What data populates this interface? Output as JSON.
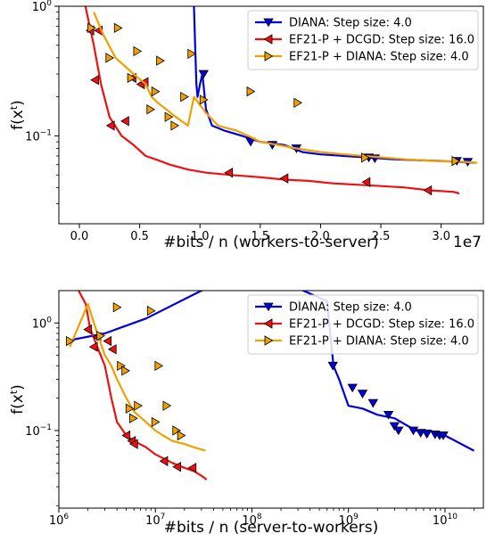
{
  "chart_data": [
    {
      "type": "line",
      "title": "",
      "xlabel": "#bits / n (workers-to-server)",
      "ylabel": "f(x^t)",
      "ylabel_base": "f(x",
      "ylabel_sup": "t",
      "ylabel_close": ")",
      "x_offset_label": "1e7",
      "x_scale": "linear",
      "y_scale": "log",
      "xlim": [
        -0.17,
        3.35
      ],
      "ylim": [
        0.021,
        1.0
      ],
      "x_ticks": [
        0.0,
        0.5,
        1.0,
        1.5,
        2.0,
        2.5,
        3.0
      ],
      "x_tick_labels": [
        "0.0",
        "0.5",
        "1.0",
        "1.5",
        "2.0",
        "2.5",
        "3.0"
      ],
      "y_tick_labels": [
        {
          "value": 1.0,
          "base": "10",
          "exp": "0"
        },
        {
          "value": 0.1,
          "base": "10",
          "exp": "−1"
        }
      ],
      "legend_position": "top-right",
      "series": [
        {
          "name": "DIANA: Step size: 4.0",
          "color": "#0000dd",
          "marker": "triangle-down",
          "x": [
            0.95,
            0.96,
            0.97,
            0.98,
            1.0,
            1.02,
            1.05,
            1.1,
            1.2,
            1.35,
            1.5,
            1.7,
            1.85,
            2.0,
            2.2,
            2.4,
            2.6,
            2.8,
            3.0,
            3.15,
            3.28
          ],
          "y": [
            1.0,
            0.5,
            0.25,
            0.2,
            0.25,
            0.3,
            0.16,
            0.12,
            0.11,
            0.1,
            0.09,
            0.085,
            0.075,
            0.072,
            0.07,
            0.068,
            0.066,
            0.065,
            0.064,
            0.063,
            0.062
          ],
          "markers_x": [
            1.03,
            1.42,
            1.6,
            1.8,
            2.4,
            2.45,
            3.13,
            3.22
          ],
          "markers_y": [
            0.3,
            0.09,
            0.085,
            0.08,
            0.068,
            0.067,
            0.064,
            0.063
          ]
        },
        {
          "name": "EF21-P + DCGD: Step size: 16.0",
          "color": "#ee1111",
          "marker": "triangle-left",
          "x": [
            0.05,
            0.12,
            0.18,
            0.25,
            0.35,
            0.45,
            0.55,
            0.65,
            0.75,
            0.9,
            1.05,
            1.25,
            1.5,
            1.7,
            1.9,
            2.1,
            2.3,
            2.5,
            2.7,
            2.9,
            3.1,
            3.15
          ],
          "y": [
            1.0,
            0.5,
            0.25,
            0.14,
            0.1,
            0.085,
            0.07,
            0.065,
            0.06,
            0.055,
            0.052,
            0.05,
            0.048,
            0.046,
            0.045,
            0.043,
            0.042,
            0.041,
            0.04,
            0.038,
            0.037,
            0.036
          ],
          "markers_x": [
            0.09,
            0.13,
            0.16,
            0.26,
            0.38,
            0.44,
            0.51,
            0.54,
            1.24,
            1.7,
            2.38,
            2.89
          ],
          "markers_y": [
            0.65,
            0.27,
            0.65,
            0.12,
            0.13,
            0.28,
            0.25,
            0.26,
            0.052,
            0.047,
            0.044,
            0.038
          ]
        },
        {
          "name": "EF21-P + DIANA: Step size: 4.0",
          "color": "#f0a000",
          "marker": "triangle-right",
          "x": [
            0.12,
            0.2,
            0.3,
            0.45,
            0.55,
            0.6,
            0.65,
            0.72,
            0.8,
            0.9,
            0.95,
            1.05,
            1.15,
            1.3,
            1.4,
            1.5,
            1.65,
            1.8,
            2.0,
            2.2,
            2.45,
            2.7,
            2.95,
            3.2,
            3.3
          ],
          "y": [
            0.9,
            0.6,
            0.4,
            0.3,
            0.25,
            0.2,
            0.18,
            0.16,
            0.14,
            0.12,
            0.2,
            0.15,
            0.12,
            0.11,
            0.1,
            0.09,
            0.085,
            0.08,
            0.075,
            0.072,
            0.069,
            0.066,
            0.064,
            0.063,
            0.062
          ],
          "markers_x": [
            0.1,
            0.25,
            0.32,
            0.43,
            0.48,
            0.59,
            0.63,
            0.67,
            0.74,
            0.79,
            0.87,
            0.93,
            1.03,
            1.42,
            1.81,
            2.37,
            3.12
          ],
          "markers_y": [
            0.68,
            0.4,
            0.68,
            0.28,
            0.45,
            0.16,
            0.22,
            0.38,
            0.14,
            0.12,
            0.2,
            0.43,
            0.19,
            0.22,
            0.18,
            0.068,
            0.064
          ]
        }
      ]
    },
    {
      "type": "line",
      "title": "",
      "xlabel": "#bits / n (server-to-workers)",
      "ylabel": "f(x^t)",
      "ylabel_base": "f(x",
      "ylabel_sup": "t",
      "ylabel_close": ")",
      "x_scale": "log",
      "y_scale": "log",
      "xlim": [
        1000000,
        25000000000
      ],
      "ylim": [
        0.019,
        2.0
      ],
      "x_tick_labels": [
        {
          "value": 1000000,
          "base": "10",
          "exp": "6"
        },
        {
          "value": 10000000,
          "base": "10",
          "exp": "7"
        },
        {
          "value": 100000000,
          "base": "10",
          "exp": "8"
        },
        {
          "value": 1000000000,
          "base": "10",
          "exp": "9"
        },
        {
          "value": 10000000000,
          "base": "10",
          "exp": "10"
        }
      ],
      "y_tick_labels": [
        {
          "value": 1.0,
          "base": "10",
          "exp": "0"
        },
        {
          "value": 0.1,
          "base": "10",
          "exp": "−1"
        }
      ],
      "legend_position": "top-right",
      "series": [
        {
          "name": "DIANA: Step size: 4.0",
          "color": "#0000dd",
          "marker": "triangle-down",
          "x": [
            1400000,
            3000000,
            8000000,
            30000000,
            70000000,
            300000000,
            600000000,
            700000000,
            800000000,
            1000000000,
            1400000000,
            2000000000,
            3000000000,
            5000000000,
            7000000000,
            10000000000,
            20000000000
          ],
          "y": [
            0.7,
            0.8,
            1.1,
            2.0,
            2.5,
            2.1,
            1.6,
            0.4,
            0.3,
            0.17,
            0.16,
            0.14,
            0.13,
            0.1,
            0.1,
            0.09,
            0.065
          ],
          "markers_x": [
            690000000,
            1100000000,
            1400000000,
            1800000000,
            2600000000,
            3000000000,
            3300000000,
            4700000000,
            5600000000,
            6500000000,
            7900000000,
            8800000000,
            9600000000
          ],
          "markers_y": [
            0.4,
            0.25,
            0.22,
            0.18,
            0.14,
            0.11,
            0.1,
            0.1,
            0.095,
            0.093,
            0.092,
            0.09,
            0.09
          ]
        },
        {
          "name": "EF21-P + DCGD: Step size: 16.0",
          "color": "#ee1111",
          "marker": "triangle-left",
          "x": [
            1600000,
            1900000,
            2100000,
            2500000,
            3000000,
            3500000,
            4000000,
            5000000,
            6000000,
            8000000,
            10000000,
            15000000,
            20000000,
            25000000,
            30000000,
            34000000
          ],
          "y": [
            2.0,
            1.5,
            0.9,
            0.6,
            0.4,
            0.2,
            0.12,
            0.09,
            0.08,
            0.07,
            0.06,
            0.05,
            0.045,
            0.042,
            0.038,
            0.035
          ],
          "markers_x": [
            2000000,
            2300000,
            2500000,
            3200000,
            3600000,
            5000000,
            5700000,
            6000000,
            12300000,
            16800000,
            24200000
          ],
          "markers_y": [
            0.87,
            0.6,
            0.74,
            0.68,
            0.57,
            0.09,
            0.08,
            0.075,
            0.052,
            0.046,
            0.045
          ]
        },
        {
          "name": "EF21-P + DIANA: Step size: 4.0",
          "color": "#f0a000",
          "marker": "triangle-right",
          "x": [
            1300000,
            2000000,
            2500000,
            3000000,
            3500000,
            4000000,
            5000000,
            6000000,
            8000000,
            10000000,
            12000000,
            15000000,
            20000000,
            25000000,
            33000000
          ],
          "y": [
            0.6,
            1.5,
            0.8,
            0.5,
            0.4,
            0.3,
            0.2,
            0.15,
            0.12,
            0.1,
            0.09,
            0.08,
            0.075,
            0.07,
            0.065
          ],
          "markers_x": [
            1300000,
            2700000,
            4000000,
            4400000,
            4900000,
            5400000,
            5900000,
            6600000,
            9000000,
            10000000,
            10800000,
            13100000,
            16500000,
            18500000
          ],
          "markers_y": [
            0.68,
            0.76,
            1.4,
            0.4,
            0.36,
            0.16,
            0.13,
            0.17,
            1.3,
            0.12,
            0.4,
            0.17,
            0.1,
            0.09
          ]
        }
      ]
    }
  ]
}
